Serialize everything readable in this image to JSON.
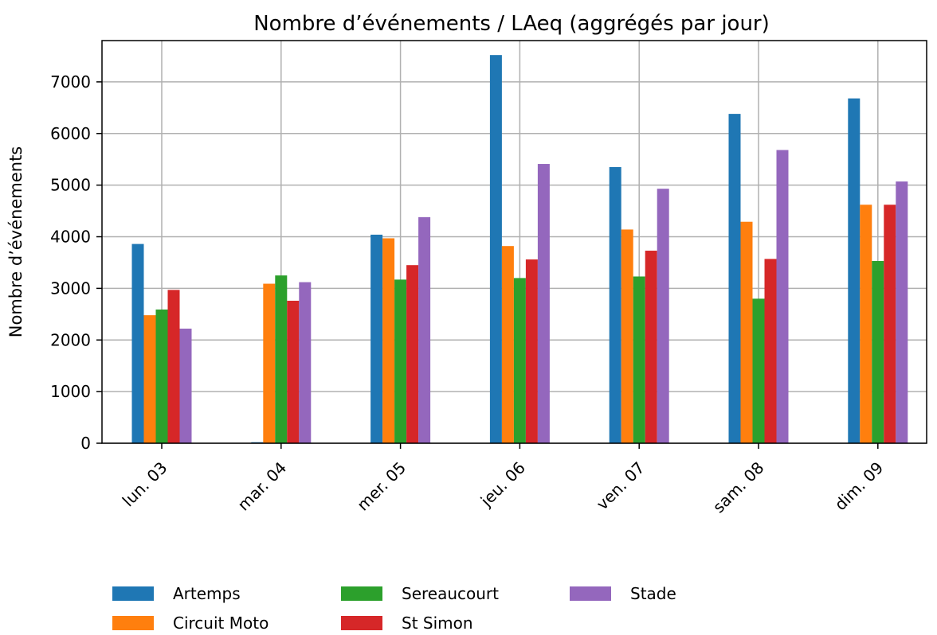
{
  "chart_data": {
    "type": "bar",
    "title": "Nombre d’événements / LAeq (aggrégés par jour)",
    "xlabel": "",
    "ylabel": "Nombre d’événements",
    "categories": [
      "lun. 03",
      "mar. 04",
      "mer. 05",
      "jeu. 06",
      "ven. 07",
      "sam. 08",
      "dim. 09"
    ],
    "ylim": [
      0,
      7800
    ],
    "yticks": [
      0,
      1000,
      2000,
      3000,
      4000,
      5000,
      6000,
      7000
    ],
    "grid": true,
    "legend_position": "bottom-left",
    "series": [
      {
        "name": "Artemps",
        "color": "#1f77b4",
        "values": [
          3860,
          20,
          4040,
          7520,
          5350,
          6380,
          6680
        ]
      },
      {
        "name": "Circuit Moto",
        "color": "#ff7f0e",
        "values": [
          2480,
          3090,
          3970,
          3820,
          4140,
          4290,
          4620
        ]
      },
      {
        "name": "Sereaucourt",
        "color": "#2ca02c",
        "values": [
          2590,
          3250,
          3170,
          3200,
          3230,
          2800,
          3530
        ]
      },
      {
        "name": "St Simon",
        "color": "#d62728",
        "values": [
          2970,
          2760,
          3450,
          3560,
          3730,
          3570,
          4620
        ]
      },
      {
        "name": "Stade",
        "color": "#9467bd",
        "values": [
          2220,
          3120,
          4380,
          5410,
          4930,
          5680,
          5070
        ]
      }
    ]
  }
}
